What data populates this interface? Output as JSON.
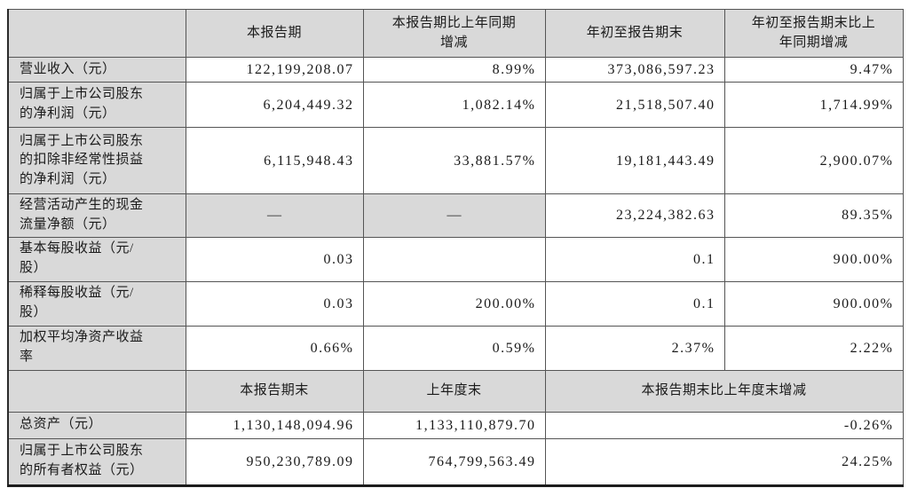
{
  "document": {
    "kind": "quarterly-report-key-financials-table",
    "language": "zh-CN"
  },
  "colors": {
    "cell_shading": "#d9d9d9",
    "grid_line": "#555555",
    "text": "#1a1a1a",
    "background": "#ffffff"
  },
  "table": {
    "header1": {
      "corner": "",
      "col_current_period": "本报告期",
      "col_current_vs_prior": "本报告期比上年同期\n增减",
      "col_ytd": "年初至报告期末",
      "col_ytd_vs_prior": "年初至报告期末比上\n年同期增减"
    },
    "rows1": [
      {
        "label": "营业收入（元）",
        "c1": "122,199,208.07",
        "c2": "8.99%",
        "c3": "373,086,597.23",
        "c4": "9.47%"
      },
      {
        "label": "归属于上市公司股东\n的净利润（元）",
        "c1": "6,204,449.32",
        "c2": "1,082.14%",
        "c3": "21,518,507.40",
        "c4": "1,714.99%"
      },
      {
        "label": "归属于上市公司股东\n的扣除非经常性损益\n的净利润（元）",
        "c1": "6,115,948.43",
        "c2": "33,881.57%",
        "c3": "19,181,443.49",
        "c4": "2,900.07%"
      },
      {
        "label": "经营活动产生的现金\n流量净额（元）",
        "c1": "—",
        "c2": "—",
        "c3": "23,224,382.63",
        "c4": "89.35%"
      },
      {
        "label": "基本每股收益（元/\n股）",
        "c1": "0.03",
        "c2": "",
        "c3": "0.1",
        "c4": "900.00%"
      },
      {
        "label": "稀释每股收益（元/\n股）",
        "c1": "0.03",
        "c2": "200.00%",
        "c3": "0.1",
        "c4": "900.00%"
      },
      {
        "label": "加权平均净资产收益\n率",
        "c1": "0.66%",
        "c2": "0.59%",
        "c3": "2.37%",
        "c4": "2.22%"
      }
    ],
    "header2": {
      "corner": "",
      "col_period_end": "本报告期末",
      "col_prior_year_end": "上年度末",
      "col_end_vs_prior_end": "本报告期末比上年度末增减"
    },
    "rows2": [
      {
        "label": "总资产（元）",
        "c1": "1,130,148,094.96",
        "c2": "1,133,110,879.70",
        "c3": "-0.26%"
      },
      {
        "label": "归属于上市公司股东\n的所有者权益（元）",
        "c1": "950,230,789.09",
        "c2": "764,799,563.49",
        "c3": "24.25%"
      }
    ]
  }
}
